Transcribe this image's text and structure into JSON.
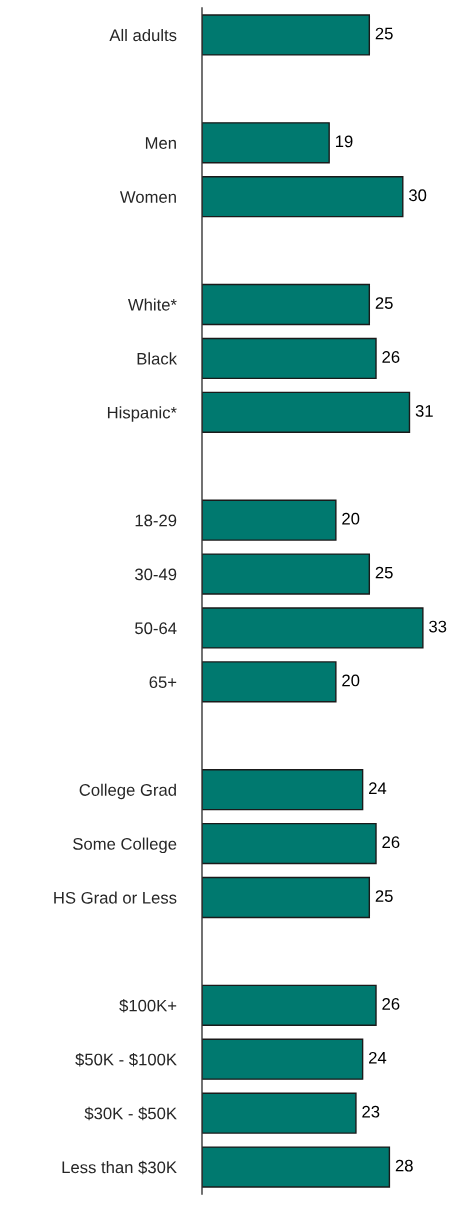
{
  "chart_data": {
    "type": "bar",
    "orientation": "horizontal",
    "categories": [
      "All adults",
      null,
      "Men",
      "Women",
      null,
      "White*",
      "Black",
      "Hispanic*",
      null,
      "18-29",
      "30-49",
      "50-64",
      "65+",
      null,
      "College Grad",
      "Some College",
      "HS Grad or Less",
      null,
      "$100K+",
      "$50K - $100K",
      "$30K - $50K",
      "Less than $30K"
    ],
    "values": [
      25,
      null,
      19,
      30,
      null,
      25,
      26,
      31,
      null,
      20,
      25,
      33,
      20,
      null,
      24,
      26,
      25,
      null,
      26,
      24,
      23,
      28
    ],
    "color": "#00796f",
    "data_labels": true,
    "tick_labels": "y",
    "grid": false,
    "legend": false
  }
}
